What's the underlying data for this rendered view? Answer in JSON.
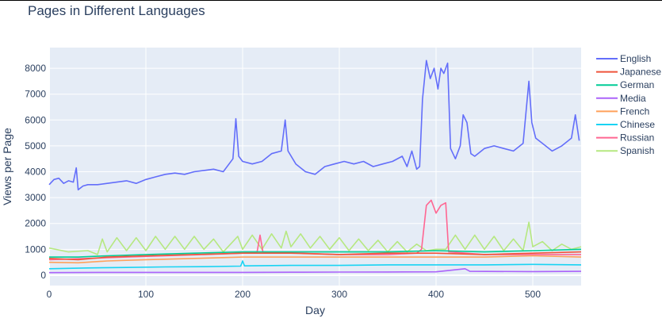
{
  "chart_data": {
    "type": "line",
    "title": "Pages in Different Languages",
    "xlabel": "Day",
    "ylabel": "Views per Page",
    "xlim": [
      0,
      550
    ],
    "ylim": [
      -400,
      8800
    ],
    "xticks": [
      0,
      100,
      200,
      300,
      400,
      500
    ],
    "yticks": [
      0,
      1000,
      2000,
      3000,
      4000,
      5000,
      6000,
      7000,
      8000
    ],
    "grid": true,
    "legend_position": "top-right",
    "series": [
      {
        "name": "English",
        "color": "#636efa",
        "points": [
          [
            0,
            3500
          ],
          [
            5,
            3700
          ],
          [
            10,
            3750
          ],
          [
            15,
            3550
          ],
          [
            20,
            3650
          ],
          [
            25,
            3600
          ],
          [
            28,
            4150
          ],
          [
            30,
            3300
          ],
          [
            35,
            3450
          ],
          [
            40,
            3500
          ],
          [
            50,
            3500
          ],
          [
            60,
            3550
          ],
          [
            70,
            3600
          ],
          [
            80,
            3650
          ],
          [
            90,
            3550
          ],
          [
            100,
            3700
          ],
          [
            110,
            3800
          ],
          [
            120,
            3900
          ],
          [
            130,
            3950
          ],
          [
            140,
            3900
          ],
          [
            150,
            4000
          ],
          [
            160,
            4050
          ],
          [
            170,
            4100
          ],
          [
            180,
            4000
          ],
          [
            190,
            4500
          ],
          [
            193,
            6050
          ],
          [
            196,
            4600
          ],
          [
            200,
            4400
          ],
          [
            210,
            4300
          ],
          [
            220,
            4400
          ],
          [
            230,
            4700
          ],
          [
            240,
            4800
          ],
          [
            244,
            6000
          ],
          [
            247,
            4800
          ],
          [
            255,
            4300
          ],
          [
            265,
            4000
          ],
          [
            275,
            3900
          ],
          [
            285,
            4200
          ],
          [
            295,
            4300
          ],
          [
            305,
            4400
          ],
          [
            315,
            4300
          ],
          [
            325,
            4400
          ],
          [
            335,
            4200
          ],
          [
            345,
            4300
          ],
          [
            355,
            4400
          ],
          [
            365,
            4600
          ],
          [
            370,
            4200
          ],
          [
            375,
            4800
          ],
          [
            380,
            4100
          ],
          [
            383,
            4200
          ],
          [
            386,
            6800
          ],
          [
            390,
            8300
          ],
          [
            394,
            7600
          ],
          [
            398,
            8000
          ],
          [
            402,
            7200
          ],
          [
            405,
            8000
          ],
          [
            408,
            7800
          ],
          [
            412,
            8200
          ],
          [
            415,
            4900
          ],
          [
            420,
            4500
          ],
          [
            425,
            5000
          ],
          [
            428,
            6200
          ],
          [
            432,
            5900
          ],
          [
            436,
            4700
          ],
          [
            440,
            4600
          ],
          [
            450,
            4900
          ],
          [
            460,
            5000
          ],
          [
            470,
            4900
          ],
          [
            480,
            4800
          ],
          [
            490,
            5100
          ],
          [
            496,
            7500
          ],
          [
            499,
            5900
          ],
          [
            503,
            5300
          ],
          [
            510,
            5100
          ],
          [
            520,
            4800
          ],
          [
            530,
            5000
          ],
          [
            540,
            5300
          ],
          [
            544,
            6200
          ],
          [
            548,
            5200
          ]
        ]
      },
      {
        "name": "Japanese",
        "color": "#ef553b",
        "points": [
          [
            0,
            650
          ],
          [
            30,
            600
          ],
          [
            60,
            700
          ],
          [
            100,
            750
          ],
          [
            150,
            800
          ],
          [
            200,
            850
          ],
          [
            250,
            850
          ],
          [
            300,
            800
          ],
          [
            350,
            850
          ],
          [
            400,
            850
          ],
          [
            450,
            800
          ],
          [
            500,
            850
          ],
          [
            550,
            900
          ]
        ]
      },
      {
        "name": "German",
        "color": "#00cc96",
        "points": [
          [
            0,
            700
          ],
          [
            30,
            700
          ],
          [
            60,
            750
          ],
          [
            100,
            800
          ],
          [
            150,
            850
          ],
          [
            200,
            900
          ],
          [
            250,
            900
          ],
          [
            300,
            900
          ],
          [
            350,
            900
          ],
          [
            400,
            950
          ],
          [
            450,
            900
          ],
          [
            500,
            950
          ],
          [
            550,
            1000
          ]
        ]
      },
      {
        "name": "Media",
        "color": "#ab63fa",
        "points": [
          [
            0,
            100
          ],
          [
            50,
            110
          ],
          [
            100,
            110
          ],
          [
            150,
            110
          ],
          [
            200,
            110
          ],
          [
            250,
            115
          ],
          [
            300,
            120
          ],
          [
            350,
            125
          ],
          [
            400,
            130
          ],
          [
            430,
            250
          ],
          [
            435,
            150
          ],
          [
            500,
            140
          ],
          [
            550,
            150
          ]
        ]
      },
      {
        "name": "French",
        "color": "#ffa15a",
        "points": [
          [
            0,
            500
          ],
          [
            30,
            480
          ],
          [
            60,
            550
          ],
          [
            100,
            600
          ],
          [
            150,
            650
          ],
          [
            200,
            700
          ],
          [
            250,
            700
          ],
          [
            300,
            700
          ],
          [
            350,
            700
          ],
          [
            400,
            700
          ],
          [
            450,
            700
          ],
          [
            500,
            750
          ],
          [
            550,
            700
          ]
        ]
      },
      {
        "name": "Chinese",
        "color": "#19d3f3",
        "points": [
          [
            0,
            250
          ],
          [
            40,
            280
          ],
          [
            80,
            300
          ],
          [
            120,
            320
          ],
          [
            160,
            330
          ],
          [
            198,
            350
          ],
          [
            200,
            550
          ],
          [
            202,
            360
          ],
          [
            250,
            380
          ],
          [
            300,
            380
          ],
          [
            350,
            400
          ],
          [
            400,
            400
          ],
          [
            450,
            400
          ],
          [
            500,
            420
          ],
          [
            550,
            400
          ]
        ]
      },
      {
        "name": "Russian",
        "color": "#ff6692",
        "points": [
          [
            0,
            600
          ],
          [
            40,
            650
          ],
          [
            80,
            700
          ],
          [
            120,
            750
          ],
          [
            160,
            800
          ],
          [
            200,
            850
          ],
          [
            215,
            900
          ],
          [
            218,
            1550
          ],
          [
            221,
            900
          ],
          [
            260,
            850
          ],
          [
            300,
            800
          ],
          [
            350,
            800
          ],
          [
            380,
            850
          ],
          [
            385,
            1000
          ],
          [
            390,
            2700
          ],
          [
            395,
            2900
          ],
          [
            400,
            2400
          ],
          [
            405,
            2700
          ],
          [
            410,
            2800
          ],
          [
            413,
            900
          ],
          [
            450,
            800
          ],
          [
            500,
            800
          ],
          [
            550,
            800
          ]
        ]
      },
      {
        "name": "Spanish",
        "color": "#b6e880",
        "points": [
          [
            0,
            1050
          ],
          [
            20,
            900
          ],
          [
            40,
            950
          ],
          [
            50,
            800
          ],
          [
            55,
            1400
          ],
          [
            60,
            900
          ],
          [
            70,
            1450
          ],
          [
            80,
            950
          ],
          [
            90,
            1450
          ],
          [
            100,
            950
          ],
          [
            110,
            1500
          ],
          [
            120,
            1000
          ],
          [
            130,
            1500
          ],
          [
            140,
            1000
          ],
          [
            150,
            1500
          ],
          [
            160,
            1000
          ],
          [
            170,
            1400
          ],
          [
            180,
            900
          ],
          [
            190,
            1300
          ],
          [
            195,
            1500
          ],
          [
            200,
            1000
          ],
          [
            210,
            1550
          ],
          [
            220,
            1000
          ],
          [
            230,
            1600
          ],
          [
            240,
            1050
          ],
          [
            245,
            1700
          ],
          [
            250,
            1100
          ],
          [
            260,
            1600
          ],
          [
            270,
            1050
          ],
          [
            280,
            1500
          ],
          [
            290,
            1000
          ],
          [
            300,
            1450
          ],
          [
            310,
            950
          ],
          [
            320,
            1400
          ],
          [
            330,
            950
          ],
          [
            340,
            1350
          ],
          [
            350,
            900
          ],
          [
            360,
            1300
          ],
          [
            370,
            900
          ],
          [
            380,
            1200
          ],
          [
            390,
            950
          ],
          [
            400,
            1000
          ],
          [
            410,
            1000
          ],
          [
            420,
            1550
          ],
          [
            430,
            1000
          ],
          [
            440,
            1550
          ],
          [
            450,
            1000
          ],
          [
            460,
            1500
          ],
          [
            470,
            950
          ],
          [
            480,
            1400
          ],
          [
            490,
            950
          ],
          [
            496,
            2050
          ],
          [
            500,
            1100
          ],
          [
            510,
            1300
          ],
          [
            520,
            950
          ],
          [
            530,
            1200
          ],
          [
            540,
            1000
          ],
          [
            550,
            1100
          ]
        ]
      }
    ]
  }
}
